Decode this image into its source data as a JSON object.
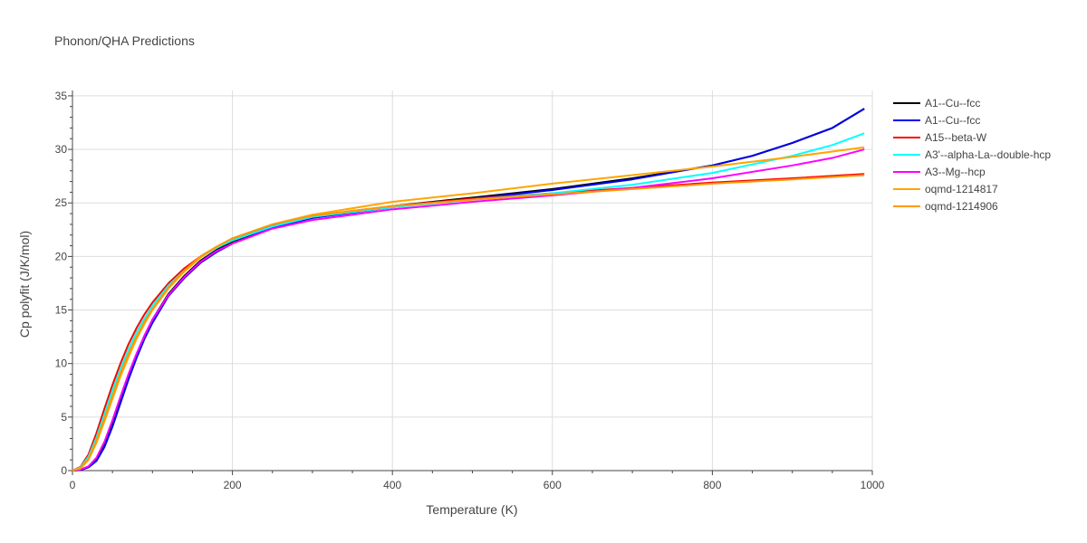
{
  "chart_data": {
    "type": "line",
    "title": "Phonon/QHA Predictions",
    "xlabel": "Temperature (K)",
    "ylabel": "Cp polyfit (J/K/mol)",
    "xlim": [
      0,
      1000
    ],
    "ylim": [
      0,
      35.5
    ],
    "xticks": [
      0,
      200,
      400,
      600,
      800,
      1000
    ],
    "yticks": [
      0,
      5,
      10,
      15,
      20,
      25,
      30,
      35
    ],
    "grid": true,
    "legend_position": "top-right",
    "series": [
      {
        "name": "A1--Cu--fcc",
        "color": "#000000",
        "x": [
          0,
          10,
          20,
          30,
          40,
          50,
          60,
          70,
          80,
          90,
          100,
          120,
          140,
          160,
          180,
          200,
          250,
          300,
          400,
          500,
          600,
          700,
          800,
          850,
          900,
          950,
          990
        ],
        "y": [
          0,
          0.05,
          0.35,
          1.0,
          2.4,
          4.4,
          6.6,
          8.8,
          10.8,
          12.6,
          14.1,
          16.5,
          18.2,
          19.6,
          20.6,
          21.4,
          22.8,
          23.6,
          24.7,
          25.5,
          26.3,
          27.3,
          28.5,
          29.4,
          30.6,
          32.0,
          33.8
        ]
      },
      {
        "name": "A1--Cu--fcc",
        "color": "#0000ee",
        "x": [
          0,
          10,
          20,
          30,
          40,
          50,
          60,
          70,
          80,
          90,
          100,
          120,
          140,
          160,
          180,
          200,
          250,
          300,
          400,
          500,
          600,
          700,
          800,
          850,
          900,
          950,
          990
        ],
        "y": [
          0,
          0.05,
          0.3,
          0.9,
          2.2,
          4.1,
          6.3,
          8.5,
          10.5,
          12.3,
          13.8,
          16.3,
          18.0,
          19.4,
          20.4,
          21.2,
          22.7,
          23.6,
          24.6,
          25.4,
          26.2,
          27.2,
          28.5,
          29.4,
          30.6,
          32.0,
          33.8
        ]
      },
      {
        "name": "A15--beta-W",
        "color": "#ff0000",
        "x": [
          0,
          10,
          20,
          30,
          40,
          50,
          60,
          70,
          80,
          90,
          100,
          120,
          140,
          160,
          180,
          200,
          250,
          300,
          400,
          500,
          600,
          700,
          800,
          900,
          990
        ],
        "y": [
          0,
          0.35,
          1.5,
          3.5,
          5.8,
          8.0,
          10.0,
          11.8,
          13.3,
          14.6,
          15.7,
          17.5,
          18.9,
          20.0,
          20.9,
          21.6,
          22.9,
          23.8,
          24.7,
          25.4,
          25.9,
          26.4,
          26.9,
          27.3,
          27.7
        ]
      },
      {
        "name": "A3'--alpha-La--double-hcp",
        "color": "#00ffff",
        "x": [
          0,
          10,
          20,
          30,
          40,
          50,
          60,
          70,
          80,
          90,
          100,
          120,
          140,
          160,
          180,
          200,
          250,
          300,
          400,
          500,
          600,
          700,
          800,
          900,
          950,
          990
        ],
        "y": [
          0,
          0.3,
          1.3,
          3.1,
          5.3,
          7.5,
          9.5,
          11.3,
          12.9,
          14.2,
          15.4,
          17.3,
          18.7,
          19.9,
          20.8,
          21.5,
          22.8,
          23.7,
          24.6,
          25.3,
          25.9,
          26.7,
          27.8,
          29.4,
          30.4,
          31.5
        ]
      },
      {
        "name": "A3--Mg--hcp",
        "color": "#ff00ff",
        "x": [
          0,
          10,
          20,
          30,
          40,
          50,
          60,
          70,
          80,
          90,
          100,
          120,
          140,
          160,
          180,
          200,
          250,
          300,
          400,
          500,
          600,
          700,
          800,
          900,
          950,
          990
        ],
        "y": [
          0,
          0.1,
          0.4,
          1.2,
          2.7,
          4.7,
          6.9,
          9.0,
          10.9,
          12.6,
          14.1,
          16.4,
          18.1,
          19.5,
          20.5,
          21.2,
          22.6,
          23.4,
          24.4,
          25.1,
          25.7,
          26.4,
          27.3,
          28.5,
          29.2,
          30.0
        ]
      },
      {
        "name": "oqmd-1214817",
        "color": "#ffa500",
        "x": [
          0,
          10,
          20,
          30,
          40,
          50,
          60,
          70,
          80,
          90,
          100,
          120,
          140,
          160,
          180,
          200,
          250,
          300,
          400,
          500,
          600,
          700,
          800,
          900,
          990
        ],
        "y": [
          0,
          0.2,
          1.0,
          2.6,
          4.6,
          6.7,
          8.8,
          10.6,
          12.3,
          13.7,
          15.0,
          17.0,
          18.6,
          19.9,
          20.9,
          21.7,
          23.0,
          23.9,
          25.1,
          25.9,
          26.8,
          27.6,
          28.4,
          29.3,
          30.2
        ]
      },
      {
        "name": "oqmd-1214906",
        "color": "#ff9900",
        "x": [
          0,
          10,
          20,
          30,
          40,
          50,
          60,
          70,
          80,
          90,
          100,
          120,
          140,
          160,
          180,
          200,
          250,
          300,
          400,
          500,
          600,
          700,
          800,
          900,
          990
        ],
        "y": [
          0,
          0.25,
          1.1,
          2.8,
          4.9,
          7.0,
          9.1,
          10.9,
          12.5,
          13.9,
          15.1,
          17.1,
          18.7,
          20.0,
          20.9,
          21.7,
          23.0,
          23.8,
          24.7,
          25.3,
          25.8,
          26.3,
          26.8,
          27.2,
          27.6
        ]
      }
    ]
  }
}
